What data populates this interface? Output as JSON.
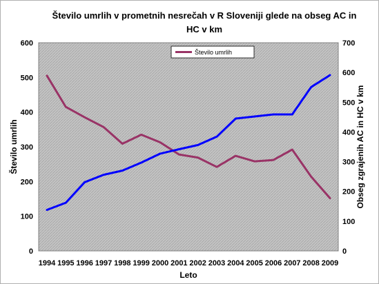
{
  "chart_data": {
    "type": "line",
    "title_lines": [
      "Število umrlih v prometnih nesrečah v R Sloveniji glede na obseg AC in",
      "HC v km"
    ],
    "xlabel": "Leto",
    "ylabel_left": "Število umrlih",
    "ylabel_right": "Obseg zgrajenih AC in HC v km",
    "x": [
      "1994",
      "1995",
      "1996",
      "1997",
      "1998",
      "1999",
      "2000",
      "2001",
      "2002",
      "2003",
      "2004",
      "2005",
      "2006",
      "2007",
      "2008",
      "2009"
    ],
    "ylim_left": [
      0,
      600
    ],
    "ylim_right": [
      0,
      700
    ],
    "yticks_left": [
      0,
      100,
      200,
      300,
      400,
      500,
      600
    ],
    "yticks_right": [
      0,
      100,
      200,
      300,
      400,
      500,
      600,
      700
    ],
    "grid": false,
    "legend_position": "top-center",
    "series": [
      {
        "name": "Število umrlih",
        "axis": "left",
        "color": "#993366",
        "values": [
          505,
          415,
          385,
          357,
          309,
          335,
          313,
          278,
          269,
          242,
          274,
          258,
          262,
          292,
          214,
          152
        ]
      },
      {
        "axis": "right",
        "color": "#0000ff",
        "values": [
          138,
          162,
          231,
          256,
          270,
          297,
          327,
          342,
          356,
          384,
          445,
          452,
          459,
          459,
          551,
          591
        ]
      }
    ],
    "colors": {
      "plot_background": "#c0c0c0",
      "plot_hatch": "#a8a8a8"
    }
  }
}
